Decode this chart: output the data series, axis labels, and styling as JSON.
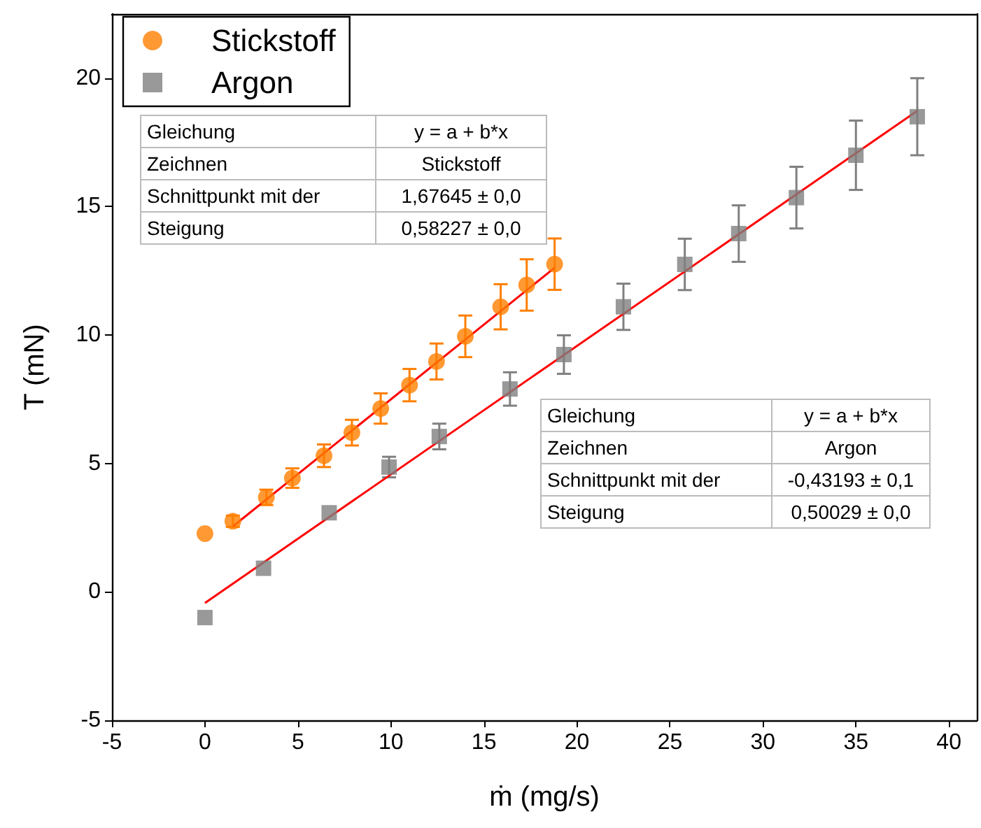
{
  "chart_data": {
    "type": "scatter",
    "xlabel": "ṁ (mg/s)",
    "ylabel": "T (mN)",
    "xlim": [
      -5,
      41.5
    ],
    "ylim": [
      -5,
      22.5
    ],
    "xticks": [
      -5,
      0,
      5,
      10,
      15,
      20,
      25,
      30,
      35,
      40
    ],
    "yticks": [
      -5,
      0,
      5,
      10,
      15,
      20
    ],
    "grid": false,
    "legend": "top left",
    "series": [
      {
        "name": "Stickstoff",
        "marker": "circle",
        "color": "#ff7f00",
        "x": [
          0,
          1.5,
          3.3,
          4.7,
          6.4,
          7.9,
          9.45,
          11.0,
          12.45,
          14.0,
          15.9,
          17.3,
          18.8
        ],
        "values": [
          2.27,
          2.75,
          3.68,
          4.43,
          5.3,
          6.2,
          7.14,
          8.05,
          8.97,
          9.95,
          11.1,
          11.95,
          12.76
        ],
        "errors": [
          null,
          0.22,
          0.3,
          0.38,
          0.44,
          0.5,
          0.59,
          0.63,
          0.7,
          0.81,
          0.88,
          1.0,
          1.0
        ]
      },
      {
        "name": "Argon",
        "marker": "square",
        "color": "#808080",
        "x": [
          0,
          3.15,
          6.68,
          9.9,
          12.6,
          16.4,
          19.3,
          22.5,
          25.8,
          28.7,
          31.8,
          35.0,
          38.3
        ],
        "values": [
          -1.0,
          0.92,
          3.08,
          4.86,
          6.05,
          7.9,
          9.24,
          11.1,
          12.75,
          13.95,
          15.35,
          17.0,
          18.5
        ],
        "errors": [
          null,
          null,
          null,
          0.4,
          0.5,
          0.65,
          0.75,
          0.9,
          1.0,
          1.1,
          1.2,
          1.35,
          1.5
        ]
      },
      {
        "type": "line",
        "color": "#ff0000",
        "x": [
          1.5,
          18.8
        ],
        "values": [
          2.55,
          12.62
        ]
      },
      {
        "type": "line",
        "color": "#ff0000",
        "x": [
          0,
          38.3
        ],
        "values": [
          -0.43,
          18.73
        ]
      }
    ],
    "annotations": [
      "Gleichung",
      "y = a + b*x",
      "Zeichnen",
      "Stickstoff",
      "Schnittpunkt mit der",
      "1,67645 ± 0,0",
      "Steigung",
      "0,58227 ± 0,0",
      "Gleichung",
      "y = a + b*x",
      "Zeichnen",
      "Argon",
      "Schnittpunkt mit der",
      "-0,43193 ± 0,1",
      "Steigung",
      "0,50029 ± 0,0"
    ]
  }
}
